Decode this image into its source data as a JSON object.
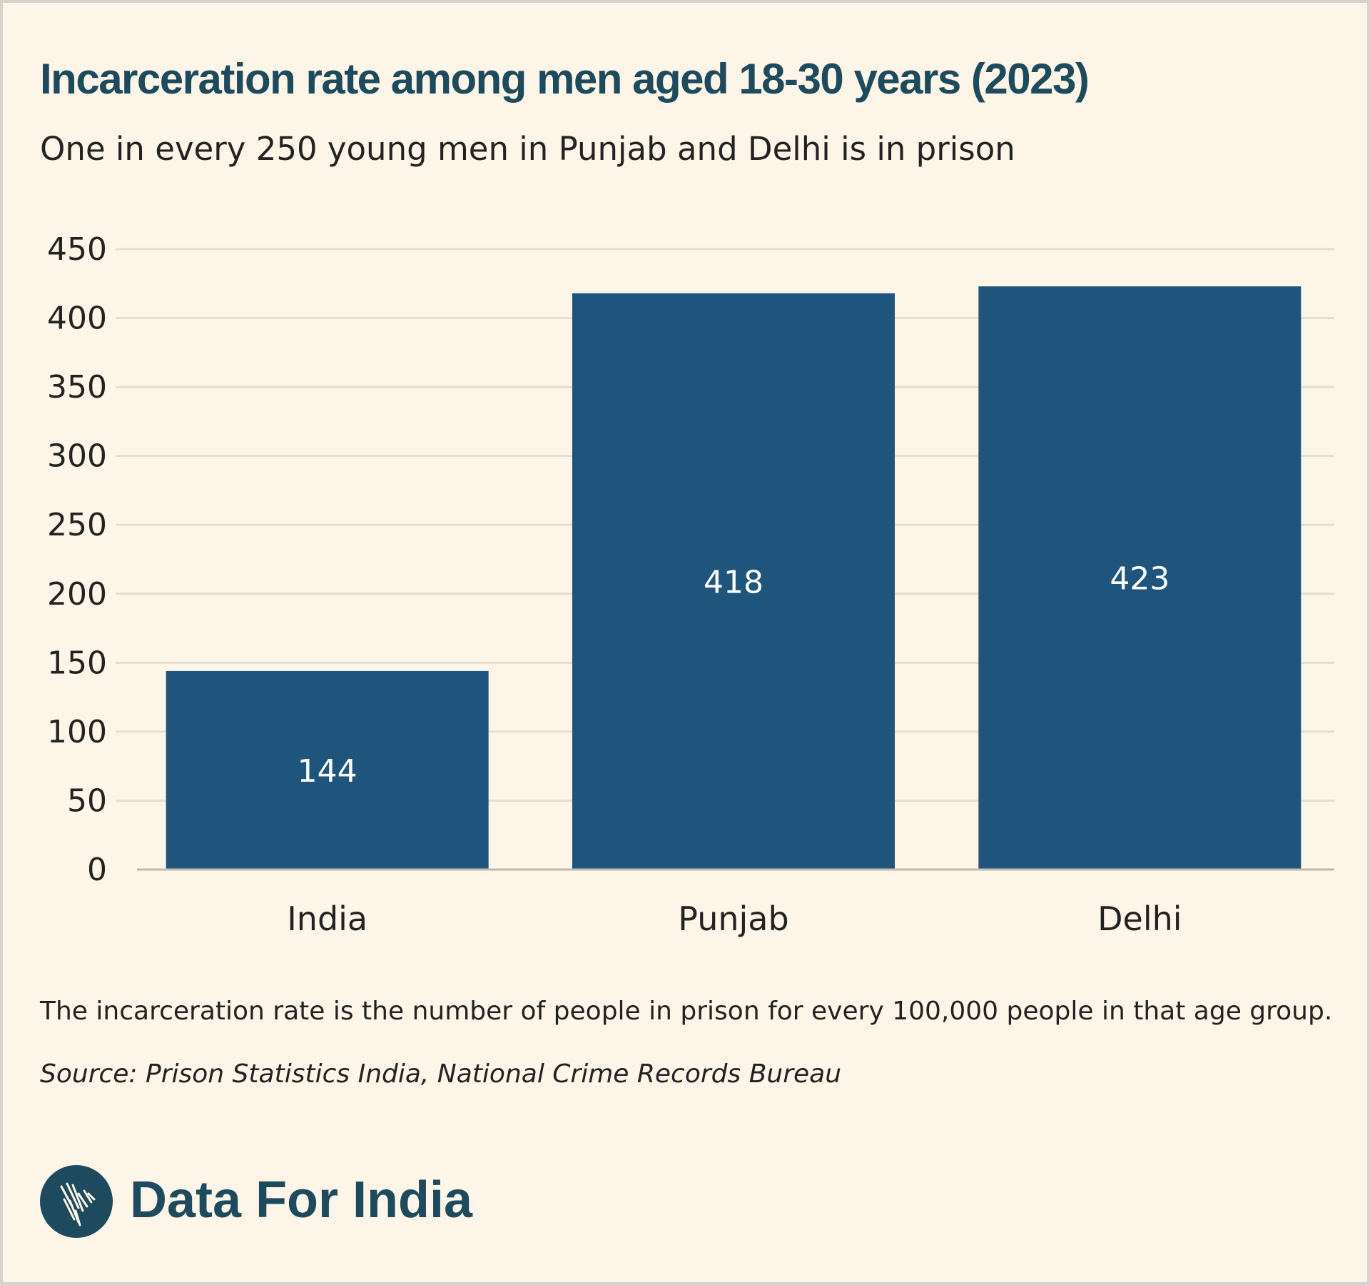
{
  "header": {
    "title": "Incarceration rate among men aged 18-30 years (2023)",
    "subtitle": "One in every 250 young men in Punjab and Delhi is in prison"
  },
  "footer": {
    "note": "The incarceration rate is the number of people in prison for every 100,000 people in that age group.",
    "source": "Source: Prison Statistics India, National Crime Records Bureau",
    "brand": "Data For India",
    "logo_icon": "india-map-icon"
  },
  "colors": {
    "bar": "#1f557d",
    "title": "#1d4a5c",
    "background": "#fdf6e8",
    "grid": "#e3ddd2"
  },
  "chart_data": {
    "type": "bar",
    "title": "Incarceration rate among men aged 18-30 years (2023)",
    "subtitle": "One in every 250 young men in Punjab and Delhi is in prison",
    "categories": [
      "India",
      "Punjab",
      "Delhi"
    ],
    "values": [
      144,
      418,
      423
    ],
    "data_labels": [
      "144",
      "418",
      "423"
    ],
    "xlabel": "",
    "ylabel": "",
    "ylim": [
      0,
      450
    ],
    "yticks": [
      0,
      50,
      100,
      150,
      200,
      250,
      300,
      350,
      400,
      450
    ],
    "grid": true,
    "legend": "none"
  }
}
